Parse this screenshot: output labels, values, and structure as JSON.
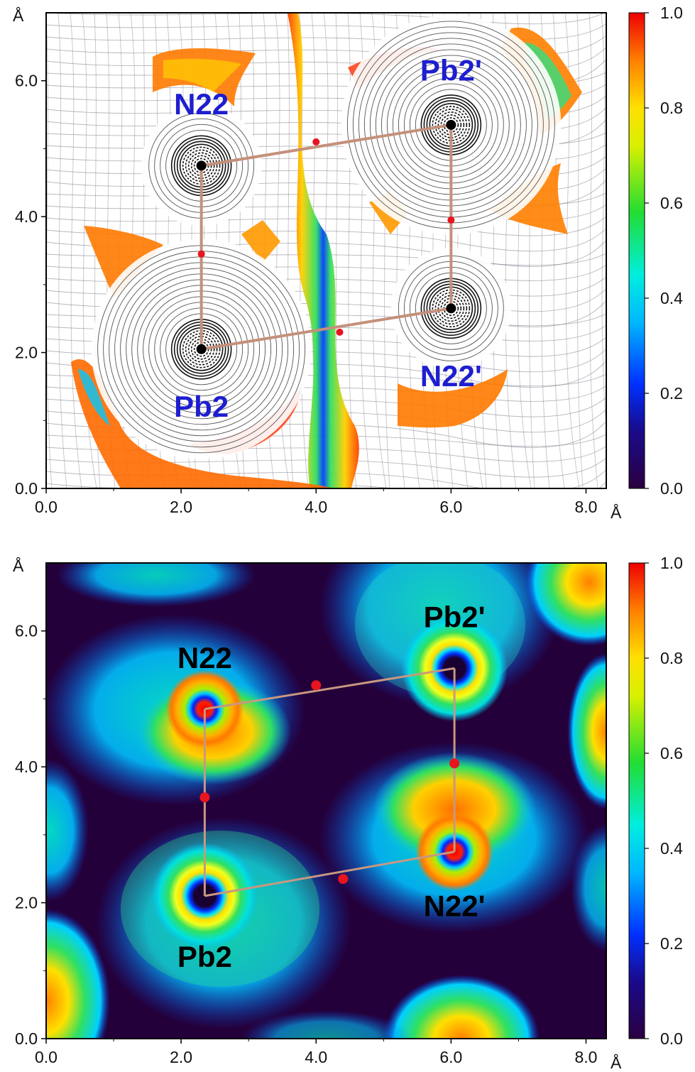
{
  "chart_data": [
    {
      "type": "heatmap",
      "title": "",
      "xlabel": "Å",
      "ylabel": "Å",
      "xlim": [
        0,
        8.3
      ],
      "ylim": [
        0,
        7.0
      ],
      "xticks": [
        "0.0",
        "2.0",
        "4.0",
        "6.0",
        "8.0"
      ],
      "yticks": [
        "0.0",
        "2.0",
        "4.0",
        "6.0"
      ],
      "x_unit_label": "Å",
      "y_unit_label": "Å",
      "grid": false,
      "overlay": "contour lines with color-filled regions",
      "colorbar": {
        "min": 0.0,
        "max": 1.0,
        "ticks": [
          "0.0",
          "0.2",
          "0.4",
          "0.6",
          "0.8",
          "1.0"
        ],
        "colormap": "rainbow"
      },
      "atoms": [
        {
          "label": "N22",
          "x": 2.3,
          "y": 4.75,
          "label_x": 2.3,
          "label_y": 5.65
        },
        {
          "label": "Pb2'",
          "x": 6.0,
          "y": 5.35,
          "label_x": 6.0,
          "label_y": 6.15
        },
        {
          "label": "Pb2",
          "x": 2.3,
          "y": 2.05,
          "label_x": 2.3,
          "label_y": 1.2
        },
        {
          "label": "N22'",
          "x": 6.0,
          "y": 2.65,
          "label_x": 6.0,
          "label_y": 1.65
        }
      ],
      "bond_critical_points": [
        {
          "x": 4.0,
          "y": 5.1
        },
        {
          "x": 6.0,
          "y": 3.95
        },
        {
          "x": 2.3,
          "y": 3.45
        },
        {
          "x": 4.35,
          "y": 2.3
        }
      ],
      "label_color": "#1e1ed0"
    },
    {
      "type": "heatmap",
      "title": "",
      "xlabel": "Å",
      "ylabel": "Å",
      "xlim": [
        0,
        8.3
      ],
      "ylim": [
        0,
        7.0
      ],
      "xticks": [
        "0.0",
        "2.0",
        "4.0",
        "6.0",
        "8.0"
      ],
      "yticks": [
        "0.0",
        "2.0",
        "4.0",
        "6.0"
      ],
      "x_unit_label": "Å",
      "y_unit_label": "Å",
      "grid": false,
      "colorbar": {
        "min": 0.0,
        "max": 1.0,
        "ticks": [
          "0.0",
          "0.2",
          "0.4",
          "0.6",
          "0.8",
          "1.0"
        ],
        "colormap": "rainbow"
      },
      "atoms": [
        {
          "label": "N22",
          "x": 2.35,
          "y": 4.85,
          "label_x": 2.35,
          "label_y": 5.6
        },
        {
          "label": "Pb2'",
          "x": 6.05,
          "y": 5.45,
          "label_x": 6.05,
          "label_y": 6.2
        },
        {
          "label": "Pb2",
          "x": 2.35,
          "y": 2.1,
          "label_x": 2.35,
          "label_y": 1.2
        },
        {
          "label": "N22'",
          "x": 6.05,
          "y": 2.75,
          "label_x": 6.05,
          "label_y": 1.95
        }
      ],
      "bond_critical_points": [
        {
          "x": 4.0,
          "y": 5.2
        },
        {
          "x": 6.05,
          "y": 4.05
        },
        {
          "x": 2.35,
          "y": 3.55
        },
        {
          "x": 4.4,
          "y": 2.35
        }
      ],
      "label_color": "#000000"
    }
  ]
}
